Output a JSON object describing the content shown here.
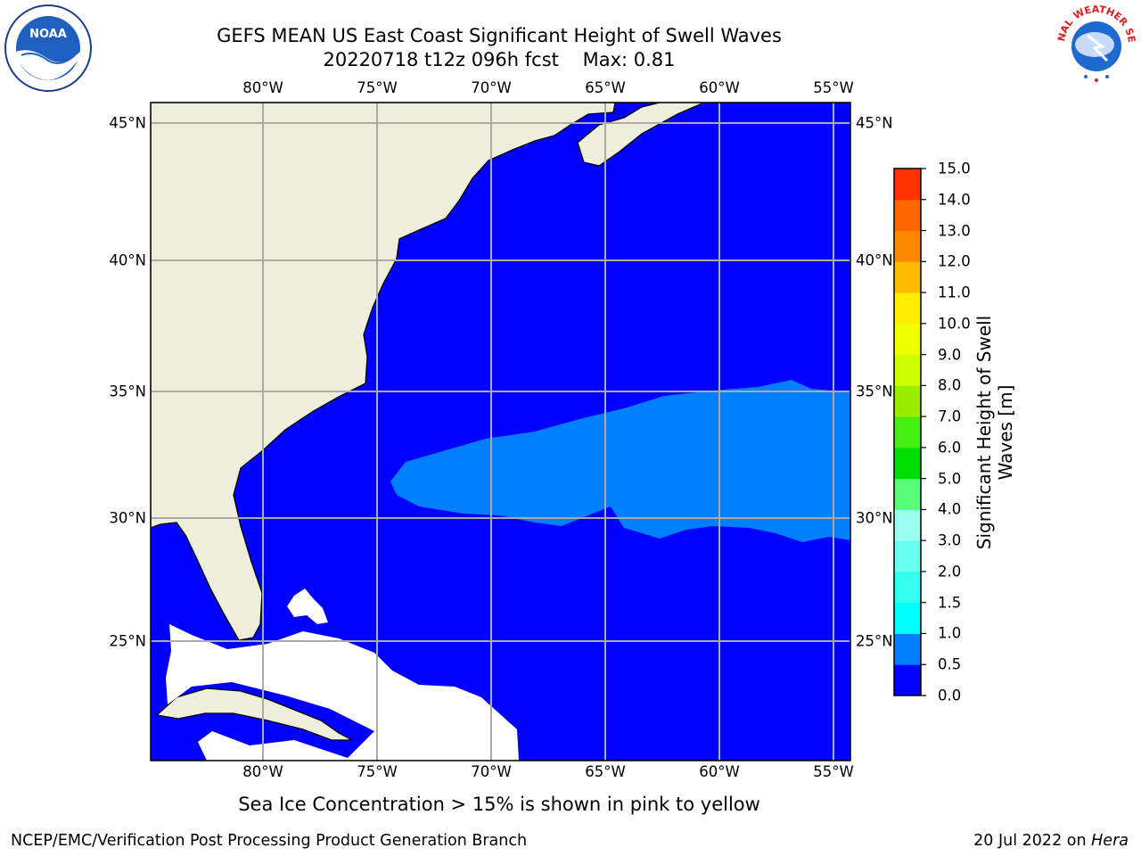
{
  "title": {
    "line1": "GEFS MEAN US East Coast Significant Height of Swell Waves",
    "line2": "20220718 t12z 096h fcst    Max: 0.81"
  },
  "map": {
    "lon_labels": [
      "80°W",
      "75°W",
      "70°W",
      "65°W",
      "60°W",
      "55°W"
    ],
    "lat_labels": [
      "45°N",
      "40°N",
      "35°N",
      "30°N",
      "25°N"
    ],
    "colors": {
      "ocean_low": "#0000ff",
      "ocean_mid": "#0080ff",
      "land": "#eeeedd",
      "no_data": "#ffffff",
      "grid": "#aaaaaa"
    }
  },
  "colorbar": {
    "label_line1": "Significant Height of Swell",
    "label_line2": "Waves [m]",
    "ticks": [
      "0.0",
      "0.5",
      "1.0",
      "1.5",
      "2.0",
      "3.0",
      "4.0",
      "5.0",
      "6.0",
      "7.0",
      "8.0",
      "9.0",
      "10.0",
      "11.0",
      "12.0",
      "13.0",
      "14.0",
      "15.0"
    ],
    "colors": [
      "#0000ff",
      "#0080ff",
      "#00ffff",
      "#33ffee",
      "#66ffee",
      "#99ffee",
      "#55ff77",
      "#00dd00",
      "#44ee11",
      "#99ee00",
      "#ccff00",
      "#eeff00",
      "#ffee00",
      "#ffbb00",
      "#ff8800",
      "#ff6600",
      "#ff3300",
      "#ff0000"
    ]
  },
  "footer": {
    "note": "Sea Ice Concentration > 15% is shown in pink to yellow",
    "branch": "NCEP/EMC/Verification Post Processing Product Generation Branch",
    "date": "20 Jul 2022 on",
    "host": "Hera"
  },
  "logos": {
    "noaa_text": "NOAA",
    "nws_text": "NATIONAL WEATHER SERVICE"
  }
}
